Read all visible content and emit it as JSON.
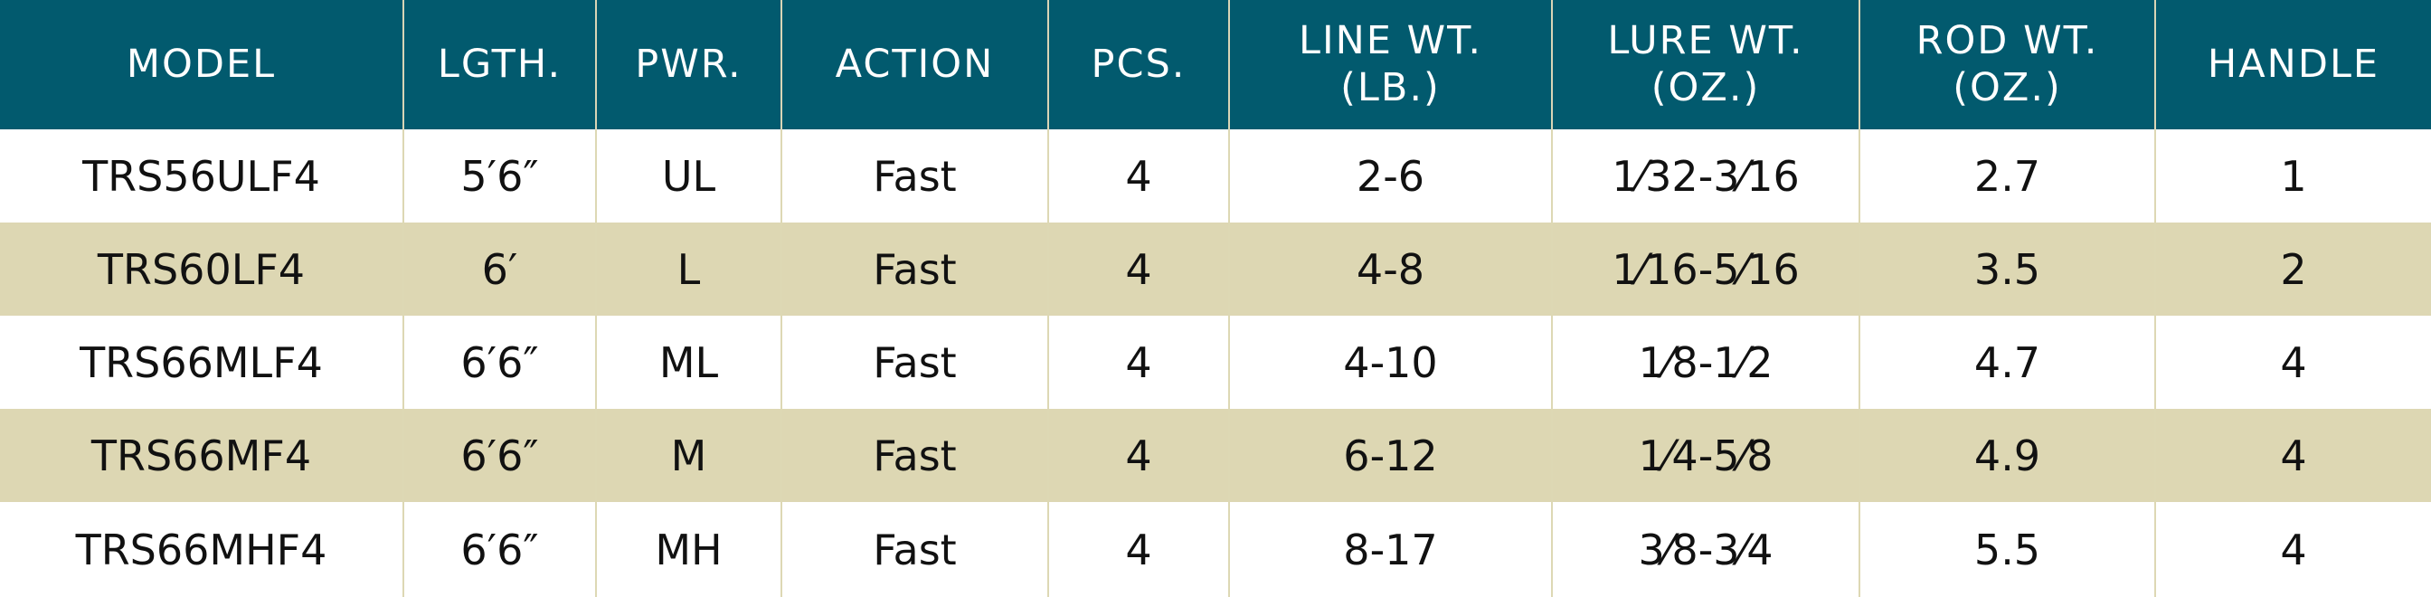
{
  "table": {
    "headers": [
      "MODEL",
      "LGTH.",
      "PWR.",
      "ACTION",
      "PCS.",
      "LINE WT.\n(LB.)",
      "LURE WT.\n(OZ.)",
      "ROD WT.\n(OZ.)",
      "HANDLE"
    ],
    "rows": [
      [
        "TRS56ULF4",
        "5′6″",
        "UL",
        "Fast",
        "4",
        "2-6",
        "1⁄32-3⁄16",
        "2.7",
        "1"
      ],
      [
        "TRS60LF4",
        "6′",
        "L",
        "Fast",
        "4",
        "4-8",
        "1⁄16-5⁄16",
        "3.5",
        "2"
      ],
      [
        "TRS66MLF4",
        "6′6″",
        "ML",
        "Fast",
        "4",
        "4-10",
        "1⁄8-1⁄2",
        "4.7",
        "4"
      ],
      [
        "TRS66MF4",
        "6′6″",
        "M",
        "Fast",
        "4",
        "6-12",
        "1⁄4-5⁄8",
        "4.9",
        "4"
      ],
      [
        "TRS66MHF4",
        "6′6″",
        "MH",
        "Fast",
        "4",
        "8-17",
        "3⁄8-3⁄4",
        "5.5",
        "4"
      ]
    ]
  },
  "colors": {
    "header_background": "#025a6e",
    "header_text": "#ffffff",
    "stripe_background": "#ddd7b3",
    "row_background": "#ffffff"
  }
}
